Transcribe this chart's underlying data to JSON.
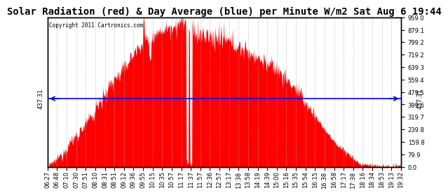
{
  "title": "Solar Radiation (red) & Day Average (blue) per Minute W/m2 Sat Aug 6 19:44",
  "copyright": "Copyright 2011 Cartronics.com",
  "avg_value": 437.31,
  "y_max": 959.0,
  "y_min": 0.0,
  "y_ticks": [
    0.0,
    79.9,
    159.8,
    239.8,
    319.7,
    399.6,
    479.5,
    559.4,
    639.3,
    719.2,
    799.2,
    879.1,
    959.0
  ],
  "x_labels": [
    "06:27",
    "06:48",
    "07:10",
    "07:30",
    "07:51",
    "08:10",
    "08:31",
    "08:51",
    "09:12",
    "09:36",
    "09:55",
    "10:15",
    "10:35",
    "10:57",
    "11:17",
    "11:37",
    "11:57",
    "12:36",
    "12:57",
    "13:17",
    "13:38",
    "13:58",
    "14:19",
    "14:39",
    "15:00",
    "15:16",
    "15:35",
    "15:54",
    "16:15",
    "16:38",
    "16:58",
    "17:17",
    "17:38",
    "18:16",
    "18:34",
    "18:53",
    "19:13",
    "19:32"
  ],
  "fill_color": "#FF0000",
  "line_color": "#0000FF",
  "bg_color": "#FFFFFF",
  "grid_color": "#AAAAAA",
  "title_fontsize": 10,
  "tick_fontsize": 6.0
}
